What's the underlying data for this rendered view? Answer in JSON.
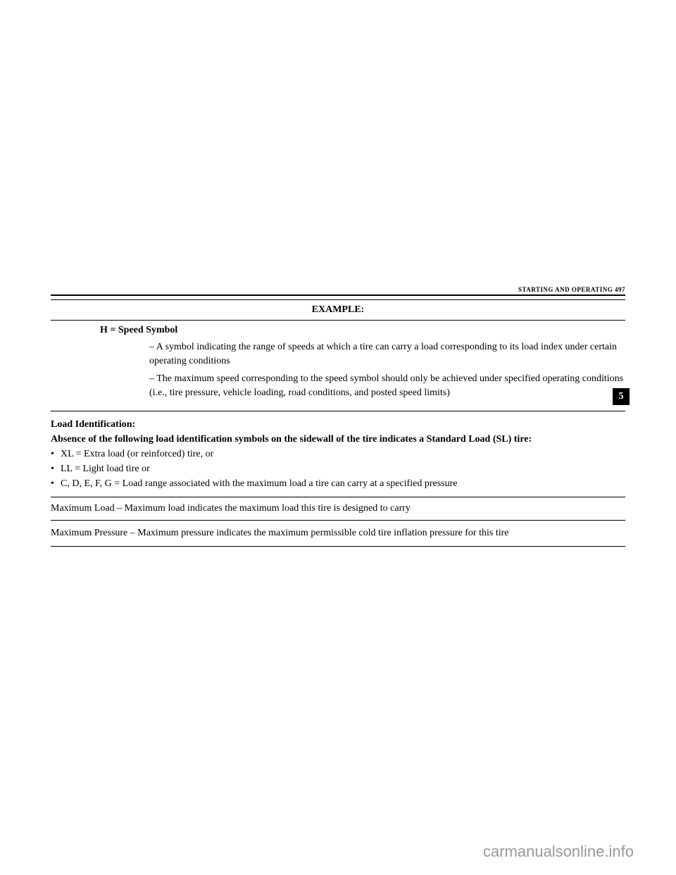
{
  "header": {
    "section": "STARTING AND OPERATING",
    "page": "497"
  },
  "tableHeader": "EXAMPLE:",
  "speedSymbol": {
    "label": "H = Speed Symbol",
    "desc1": "– A symbol indicating the range of speeds at which a tire can carry a load corresponding to its load index under certain operating conditions",
    "desc2": "– The maximum speed corresponding to the speed symbol should only be achieved under specified operating conditions (i.e., tire pressure, vehicle loading, road conditions, and posted speed limits)"
  },
  "loadIdentification": {
    "title": "Load Identification:",
    "intro": "Absence of the following load identification symbols on the sidewall of the tire indicates a Standard Load (SL) tire:",
    "bullet1": "XL = Extra load (or reinforced) tire, or",
    "bullet2": "LL = Light load tire or",
    "bullet3": "C, D, E, F, G = Load range associated with the maximum load a tire can carry at a specified pressure"
  },
  "maxLoad": {
    "label": "Maximum Load",
    "text": " – Maximum load indicates the maximum load this tire is designed to carry"
  },
  "maxPressure": {
    "label": "Maximum Pressure",
    "text": " – Maximum pressure indicates the maximum permissible cold tire inflation pressure for this tire"
  },
  "pageTab": "5",
  "watermark": "carmanualsonline.info"
}
